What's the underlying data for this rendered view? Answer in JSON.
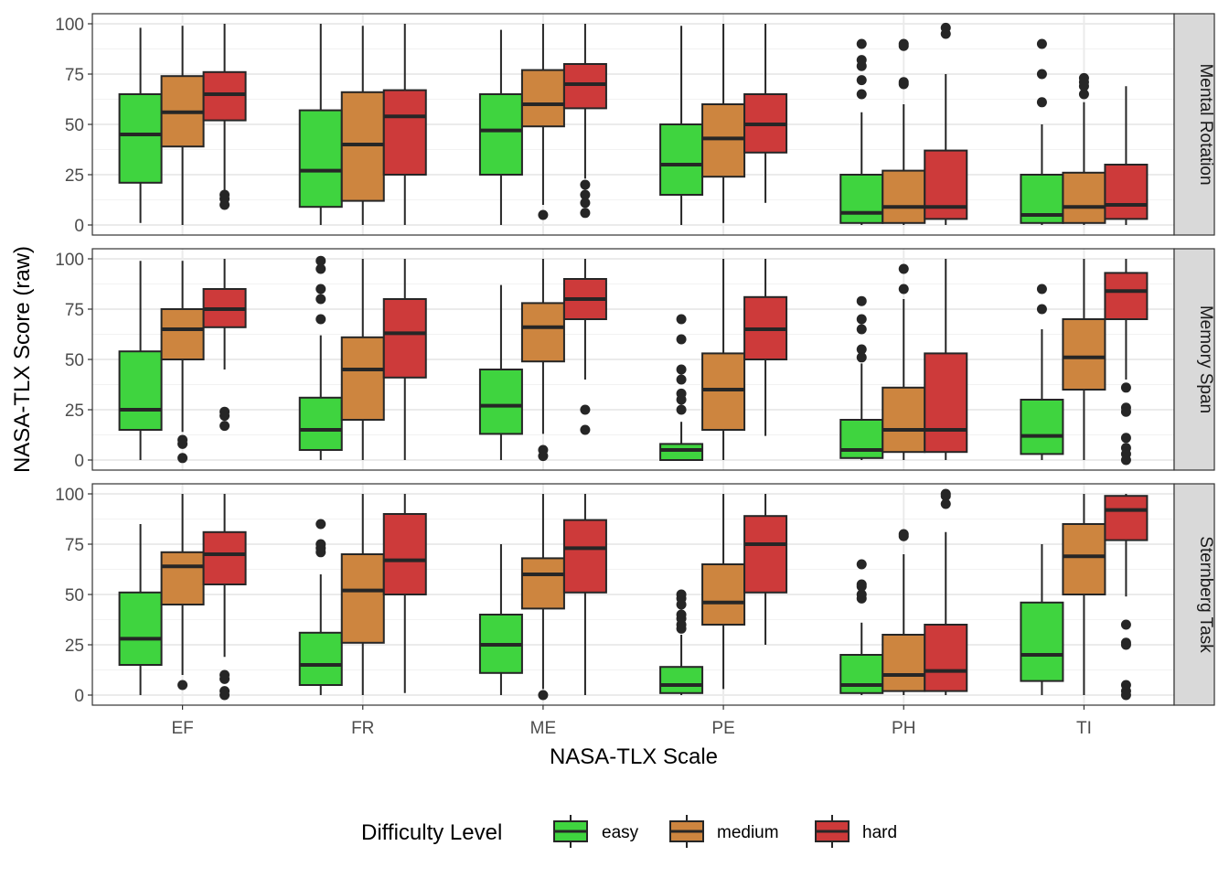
{
  "chart_data": {
    "type": "boxplot",
    "xlabel": "NASA-TLX Scale",
    "ylabel": "NASA-TLX Score (raw)",
    "ylim": [
      -5,
      105
    ],
    "y_ticks": [
      0,
      25,
      50,
      75,
      100
    ],
    "categories": [
      "EF",
      "FR",
      "ME",
      "PE",
      "PH",
      "TI"
    ],
    "grid": true,
    "legend": {
      "title": "Difficulty Level",
      "position": "bottom",
      "entries": [
        {
          "name": "easy",
          "color": "#3fd43f"
        },
        {
          "name": "medium",
          "color": "#cd853f"
        },
        {
          "name": "hard",
          "color": "#cd3a3a"
        }
      ]
    },
    "facets": [
      {
        "label": "Mental Rotation",
        "groups": {
          "EF": [
            {
              "level": "easy",
              "min": 1,
              "q1": 21,
              "median": 45,
              "q3": 65,
              "max": 98,
              "outliers": []
            },
            {
              "level": "medium",
              "min": 0,
              "q1": 39,
              "median": 56,
              "q3": 74,
              "max": 99,
              "outliers": []
            },
            {
              "level": "hard",
              "min": 16,
              "q1": 52,
              "median": 65,
              "q3": 76,
              "max": 100,
              "outliers": [
                15,
                13,
                10
              ]
            }
          ],
          "FR": [
            {
              "level": "easy",
              "min": 0,
              "q1": 9,
              "median": 27,
              "q3": 57,
              "max": 100,
              "outliers": []
            },
            {
              "level": "medium",
              "min": 0,
              "q1": 12,
              "median": 40,
              "q3": 66,
              "max": 99,
              "outliers": []
            },
            {
              "level": "hard",
              "min": 0,
              "q1": 25,
              "median": 54,
              "q3": 67,
              "max": 100,
              "outliers": []
            }
          ],
          "ME": [
            {
              "level": "easy",
              "min": 0,
              "q1": 25,
              "median": 47,
              "q3": 65,
              "max": 97,
              "outliers": []
            },
            {
              "level": "medium",
              "min": 10,
              "q1": 49,
              "median": 60,
              "q3": 77,
              "max": 100,
              "outliers": [
                5
              ]
            },
            {
              "level": "hard",
              "min": 23,
              "q1": 58,
              "median": 70,
              "q3": 80,
              "max": 100,
              "outliers": [
                20,
                15,
                11,
                6
              ]
            }
          ],
          "PE": [
            {
              "level": "easy",
              "min": 0,
              "q1": 15,
              "median": 30,
              "q3": 50,
              "max": 99,
              "outliers": []
            },
            {
              "level": "medium",
              "min": 1,
              "q1": 24,
              "median": 43,
              "q3": 60,
              "max": 100,
              "outliers": []
            },
            {
              "level": "hard",
              "min": 11,
              "q1": 36,
              "median": 50,
              "q3": 65,
              "max": 100,
              "outliers": []
            }
          ],
          "PH": [
            {
              "level": "easy",
              "min": 0,
              "q1": 1,
              "median": 6,
              "q3": 25,
              "max": 56,
              "outliers": [
                65,
                72,
                79,
                82,
                90
              ]
            },
            {
              "level": "medium",
              "min": 0,
              "q1": 1,
              "median": 9,
              "q3": 27,
              "max": 60,
              "outliers": [
                70,
                71,
                89,
                90
              ]
            },
            {
              "level": "hard",
              "min": 0,
              "q1": 3,
              "median": 9,
              "q3": 37,
              "max": 75,
              "outliers": [
                95,
                98
              ]
            }
          ],
          "TI": [
            {
              "level": "easy",
              "min": 0,
              "q1": 1,
              "median": 5,
              "q3": 25,
              "max": 50,
              "outliers": [
                61,
                75,
                90
              ]
            },
            {
              "level": "medium",
              "min": 0,
              "q1": 1,
              "median": 9,
              "q3": 26,
              "max": 61,
              "outliers": [
                65,
                69,
                71,
                73
              ]
            },
            {
              "level": "hard",
              "min": 0,
              "q1": 3,
              "median": 10,
              "q3": 30,
              "max": 69,
              "outliers": []
            }
          ]
        }
      },
      {
        "label": "Memory Span",
        "groups": {
          "EF": [
            {
              "level": "easy",
              "min": 0,
              "q1": 15,
              "median": 25,
              "q3": 54,
              "max": 99,
              "outliers": []
            },
            {
              "level": "medium",
              "min": 14,
              "q1": 50,
              "median": 65,
              "q3": 75,
              "max": 99,
              "outliers": [
                10,
                8,
                1
              ]
            },
            {
              "level": "hard",
              "min": 45,
              "q1": 66,
              "median": 75,
              "q3": 85,
              "max": 100,
              "outliers": [
                24,
                22,
                17
              ]
            }
          ],
          "FR": [
            {
              "level": "easy",
              "min": 0,
              "q1": 5,
              "median": 15,
              "q3": 31,
              "max": 62,
              "outliers": [
                70,
                80,
                85,
                95,
                99
              ]
            },
            {
              "level": "medium",
              "min": 0,
              "q1": 20,
              "median": 45,
              "q3": 61,
              "max": 100,
              "outliers": []
            },
            {
              "level": "hard",
              "min": 0,
              "q1": 41,
              "median": 63,
              "q3": 80,
              "max": 100,
              "outliers": []
            }
          ],
          "ME": [
            {
              "level": "easy",
              "min": 0,
              "q1": 13,
              "median": 27,
              "q3": 45,
              "max": 87,
              "outliers": []
            },
            {
              "level": "medium",
              "min": 13,
              "q1": 49,
              "median": 66,
              "q3": 78,
              "max": 100,
              "outliers": [
                5,
                2
              ]
            },
            {
              "level": "hard",
              "min": 40,
              "q1": 70,
              "median": 80,
              "q3": 90,
              "max": 100,
              "outliers": [
                25,
                15
              ]
            }
          ],
          "PE": [
            {
              "level": "easy",
              "min": 0,
              "q1": 0,
              "median": 5,
              "q3": 8,
              "max": 19,
              "outliers": [
                25,
                30,
                33,
                40,
                45,
                60,
                70
              ]
            },
            {
              "level": "medium",
              "min": 0,
              "q1": 15,
              "median": 35,
              "q3": 53,
              "max": 100,
              "outliers": []
            },
            {
              "level": "hard",
              "min": 12,
              "q1": 50,
              "median": 65,
              "q3": 81,
              "max": 100,
              "outliers": []
            }
          ],
          "PH": [
            {
              "level": "easy",
              "min": 0,
              "q1": 1,
              "median": 5,
              "q3": 20,
              "max": 48,
              "outliers": [
                51,
                55,
                65,
                70,
                79
              ]
            },
            {
              "level": "medium",
              "min": 0,
              "q1": 4,
              "median": 15,
              "q3": 36,
              "max": 80,
              "outliers": [
                85,
                95
              ]
            },
            {
              "level": "hard",
              "min": 0,
              "q1": 4,
              "median": 15,
              "q3": 53,
              "max": 100,
              "outliers": []
            }
          ],
          "TI": [
            {
              "level": "easy",
              "min": 0,
              "q1": 3,
              "median": 12,
              "q3": 30,
              "max": 65,
              "outliers": [
                75,
                85
              ]
            },
            {
              "level": "medium",
              "min": 0,
              "q1": 35,
              "median": 51,
              "q3": 70,
              "max": 100,
              "outliers": []
            },
            {
              "level": "hard",
              "min": 40,
              "q1": 70,
              "median": 84,
              "q3": 93,
              "max": 100,
              "outliers": [
                36,
                26,
                24,
                11,
                6,
                3,
                0
              ]
            }
          ]
        }
      },
      {
        "label": "Sternberg Task",
        "groups": {
          "EF": [
            {
              "level": "easy",
              "min": 0,
              "q1": 15,
              "median": 28,
              "q3": 51,
              "max": 85,
              "outliers": []
            },
            {
              "level": "medium",
              "min": 10,
              "q1": 45,
              "median": 64,
              "q3": 71,
              "max": 100,
              "outliers": [
                5
              ]
            },
            {
              "level": "hard",
              "min": 19,
              "q1": 55,
              "median": 70,
              "q3": 81,
              "max": 100,
              "outliers": [
                10,
                8,
                2,
                0
              ]
            }
          ],
          "FR": [
            {
              "level": "easy",
              "min": 0,
              "q1": 5,
              "median": 15,
              "q3": 31,
              "max": 60,
              "outliers": [
                71,
                73,
                75,
                85
              ]
            },
            {
              "level": "medium",
              "min": 0,
              "q1": 26,
              "median": 52,
              "q3": 70,
              "max": 100,
              "outliers": []
            },
            {
              "level": "hard",
              "min": 1,
              "q1": 50,
              "median": 67,
              "q3": 90,
              "max": 100,
              "outliers": []
            }
          ],
          "ME": [
            {
              "level": "easy",
              "min": 0,
              "q1": 11,
              "median": 25,
              "q3": 40,
              "max": 75,
              "outliers": []
            },
            {
              "level": "medium",
              "min": 3,
              "q1": 43,
              "median": 60,
              "q3": 68,
              "max": 100,
              "outliers": [
                0
              ]
            },
            {
              "level": "hard",
              "min": 0,
              "q1": 51,
              "median": 73,
              "q3": 87,
              "max": 100,
              "outliers": []
            }
          ],
          "PE": [
            {
              "level": "easy",
              "min": 0,
              "q1": 1,
              "median": 5,
              "q3": 14,
              "max": 30,
              "outliers": [
                33,
                35,
                38,
                40,
                45,
                48,
                50
              ]
            },
            {
              "level": "medium",
              "min": 3,
              "q1": 35,
              "median": 46,
              "q3": 65,
              "max": 100,
              "outliers": []
            },
            {
              "level": "hard",
              "min": 25,
              "q1": 51,
              "median": 75,
              "q3": 89,
              "max": 100,
              "outliers": []
            }
          ],
          "PH": [
            {
              "level": "easy",
              "min": 0,
              "q1": 1,
              "median": 5,
              "q3": 20,
              "max": 36,
              "outliers": [
                48,
                50,
                54,
                55,
                65
              ]
            },
            {
              "level": "medium",
              "min": 0,
              "q1": 2,
              "median": 10,
              "q3": 30,
              "max": 70,
              "outliers": [
                79,
                80
              ]
            },
            {
              "level": "hard",
              "min": 0,
              "q1": 2,
              "median": 12,
              "q3": 35,
              "max": 81,
              "outliers": [
                95,
                99,
                100
              ]
            }
          ],
          "TI": [
            {
              "level": "easy",
              "min": 0,
              "q1": 7,
              "median": 20,
              "q3": 46,
              "max": 75,
              "outliers": []
            },
            {
              "level": "medium",
              "min": 0,
              "q1": 50,
              "median": 69,
              "q3": 85,
              "max": 100,
              "outliers": []
            },
            {
              "level": "hard",
              "min": 49,
              "q1": 77,
              "median": 92,
              "q3": 99,
              "max": 100,
              "outliers": [
                35,
                26,
                25,
                5,
                2,
                0
              ]
            }
          ]
        }
      }
    ]
  }
}
